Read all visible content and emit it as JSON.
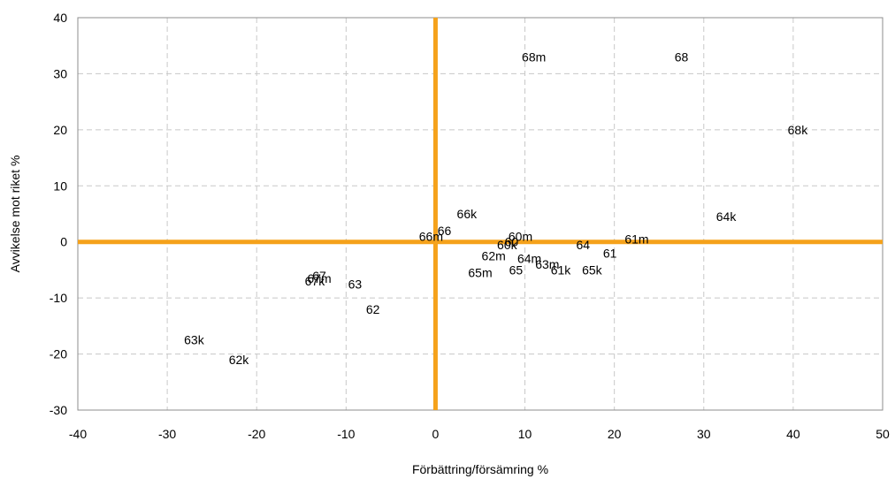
{
  "chart_data": {
    "type": "scatter",
    "title": "",
    "xlabel": "Förbättring/försämring %",
    "ylabel": "Avvikelse mot riket %",
    "xlim": [
      -40,
      50
    ],
    "ylim": [
      -30,
      40
    ],
    "xticks": [
      -40,
      -30,
      -20,
      -10,
      0,
      10,
      20,
      30,
      40,
      50
    ],
    "yticks": [
      -30,
      -20,
      -10,
      0,
      10,
      20,
      30,
      40
    ],
    "grid": true,
    "gridStyle": "dashed",
    "referenceLineColor": "#F5A21B",
    "points": [
      {
        "label": "68m",
        "x": 11,
        "y": 33
      },
      {
        "label": "68",
        "x": 27.5,
        "y": 33
      },
      {
        "label": "68k",
        "x": 40.5,
        "y": 20
      },
      {
        "label": "66k",
        "x": 3.5,
        "y": 5
      },
      {
        "label": "64k",
        "x": 32.5,
        "y": 4.5
      },
      {
        "label": "66",
        "x": 1,
        "y": 2
      },
      {
        "label": "66m",
        "x": -0.5,
        "y": 1
      },
      {
        "label": "60m",
        "x": 9.5,
        "y": 1
      },
      {
        "label": "61m",
        "x": 22.5,
        "y": 0.5
      },
      {
        "label": "60",
        "x": 8.5,
        "y": 0
      },
      {
        "label": "60k",
        "x": 8,
        "y": -0.5
      },
      {
        "label": "64",
        "x": 16.5,
        "y": -0.5
      },
      {
        "label": "61",
        "x": 19.5,
        "y": -2
      },
      {
        "label": "62m",
        "x": 6.5,
        "y": -2.5
      },
      {
        "label": "64m",
        "x": 10.5,
        "y": -3
      },
      {
        "label": "63m",
        "x": 12.5,
        "y": -4
      },
      {
        "label": "65",
        "x": 9,
        "y": -5
      },
      {
        "label": "65m",
        "x": 5,
        "y": -5.5
      },
      {
        "label": "61k",
        "x": 14,
        "y": -5
      },
      {
        "label": "65k",
        "x": 17.5,
        "y": -5
      },
      {
        "label": "67",
        "x": -13,
        "y": -6
      },
      {
        "label": "67m",
        "x": -13,
        "y": -6.5
      },
      {
        "label": "67k",
        "x": -13.5,
        "y": -7
      },
      {
        "label": "63",
        "x": -9,
        "y": -7.5
      },
      {
        "label": "62",
        "x": -7,
        "y": -12
      },
      {
        "label": "63k",
        "x": -27,
        "y": -17.5
      },
      {
        "label": "62k",
        "x": -22,
        "y": -21
      }
    ]
  }
}
